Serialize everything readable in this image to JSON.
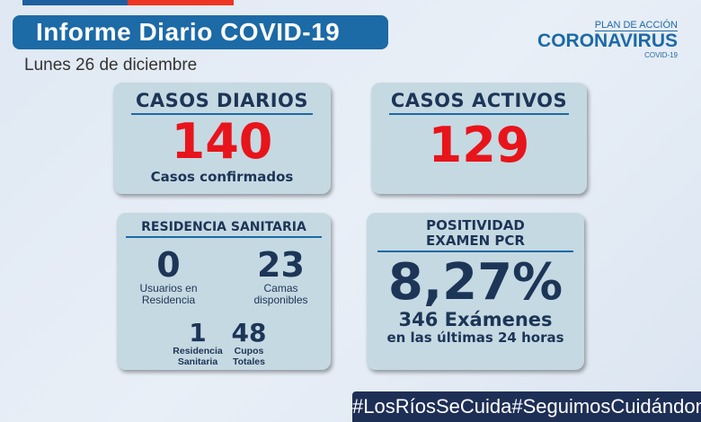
{
  "header": {
    "title": "Informe Diario COVID-19",
    "date": "Lunes 26 de diciembre"
  },
  "logo": {
    "plan": "PLAN DE ACCIÓN",
    "name": "CORONAVIRUS",
    "sub": "COVID-19"
  },
  "colors": {
    "blue": "#1c6aa6",
    "red": "#e8141b",
    "navy": "#1d3557",
    "card": "#c5d9e2"
  },
  "casos_diarios": {
    "title": "CASOS DIARIOS",
    "value": "140",
    "label": "Casos confirmados"
  },
  "casos_activos": {
    "title": "CASOS ACTIVOS",
    "value": "129"
  },
  "residencia": {
    "title": "RESIDENCIA SANITARIA",
    "usuarios": {
      "value": "0",
      "label1": "Usuarios en",
      "label2": "Residencia"
    },
    "camas": {
      "value": "23",
      "label1": "Camas",
      "label2": "disponibles"
    },
    "residencias": {
      "value": "1",
      "label1": "Residencia",
      "label2": "Sanitaria"
    },
    "cupos": {
      "value": "48",
      "label1": "Cupos",
      "label2": "Totales"
    }
  },
  "positividad": {
    "title1": "POSITIVIDAD",
    "title2": "EXAMEN PCR",
    "value": "8,27%",
    "examenes": "346 Exámenes",
    "periodo": "en las últimas 24 horas"
  },
  "hashtags": [
    "#LosRíosSeCuida",
    "#SeguimosCuidándonos"
  ]
}
